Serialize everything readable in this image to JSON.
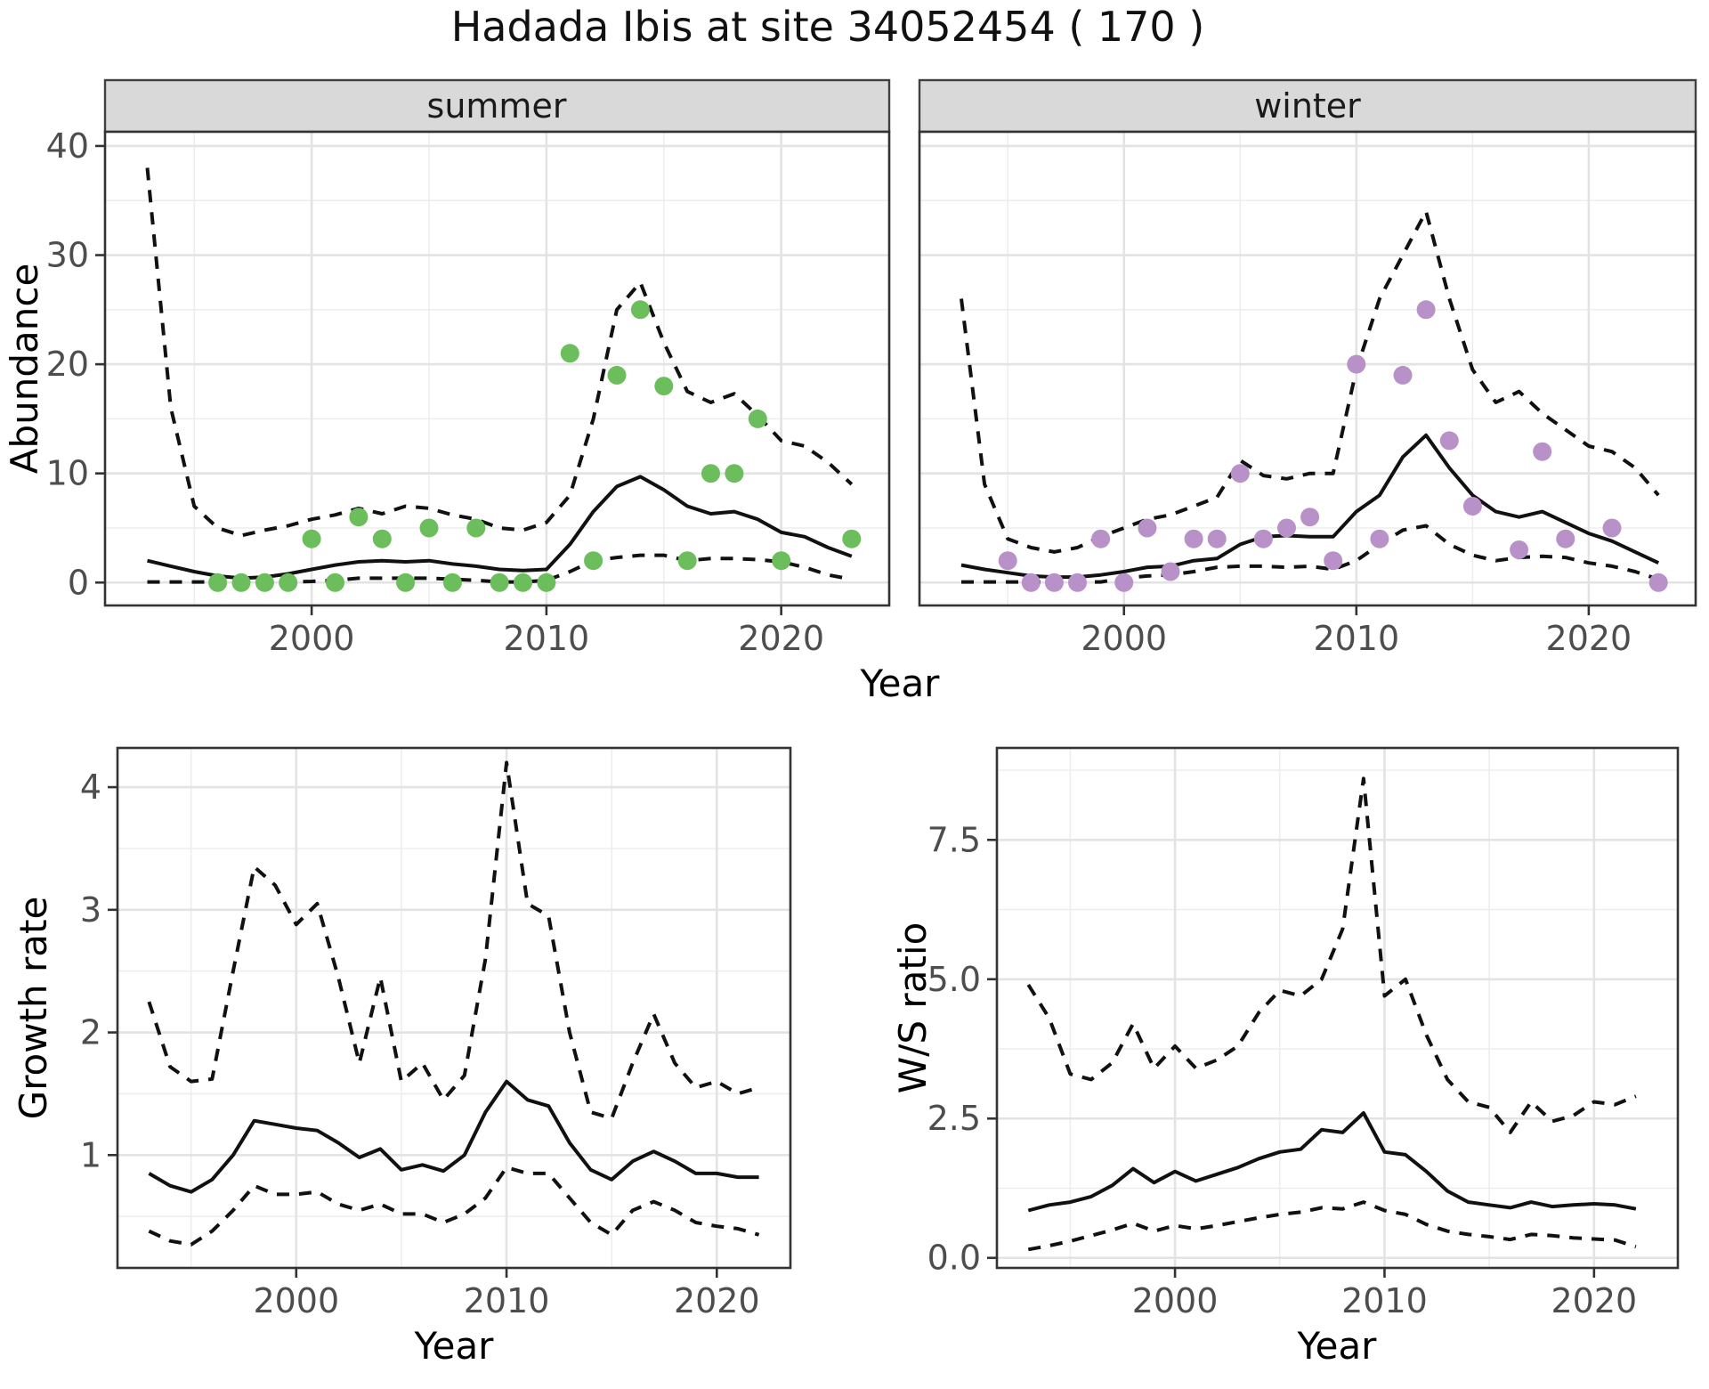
{
  "title": "Hadada Ibis at site 34052454 ( 170 )",
  "colors": {
    "summer_point": "#6BBE5B",
    "winter_point": "#B991C9",
    "line": "#111111",
    "grid_major": "#E3E3E3",
    "grid_minor": "#EDEDED",
    "strip_bg": "#D9D9D9",
    "axis_text": "#4D4D4D",
    "panel_border": "#333333"
  },
  "chart_data": [
    {
      "id": "abundance-summer",
      "type": "line",
      "facet": "summer",
      "ylabel": "Abundance",
      "xlabel": "Year",
      "xlim": [
        1991.2,
        2024.6
      ],
      "ylim": [
        -2.1,
        41.3
      ],
      "x_ticks": [
        {
          "v": 2000,
          "label": "2000"
        },
        {
          "v": 2010,
          "label": "2010"
        },
        {
          "v": 2020,
          "label": "2020"
        }
      ],
      "y_ticks": [
        {
          "v": 0,
          "label": "0"
        },
        {
          "v": 10,
          "label": "10"
        },
        {
          "v": 20,
          "label": "20"
        },
        {
          "v": 30,
          "label": "30"
        },
        {
          "v": 40,
          "label": "40"
        }
      ],
      "x_minor": [
        1995,
        2005,
        2015
      ],
      "y_minor": [
        5,
        15,
        25,
        35
      ],
      "x": [
        1993,
        1994,
        1995,
        1996,
        1997,
        1998,
        1999,
        2000,
        2001,
        2002,
        2003,
        2004,
        2005,
        2006,
        2007,
        2008,
        2009,
        2010,
        2011,
        2012,
        2013,
        2014,
        2015,
        2016,
        2017,
        2018,
        2019,
        2020,
        2021,
        2022,
        2023
      ],
      "series": [
        {
          "name": "fit",
          "style": "solid",
          "values": [
            2.0,
            1.5,
            1.0,
            0.6,
            0.4,
            0.5,
            0.8,
            1.2,
            1.6,
            1.9,
            2.0,
            1.9,
            2.0,
            1.7,
            1.5,
            1.2,
            1.1,
            1.2,
            3.5,
            6.5,
            8.8,
            9.7,
            8.5,
            7.0,
            6.3,
            6.5,
            5.8,
            4.6,
            4.2,
            3.2,
            2.4
          ]
        },
        {
          "name": "upper_ci",
          "style": "dashed",
          "values": [
            38.0,
            16.0,
            7.0,
            5.0,
            4.3,
            4.8,
            5.2,
            5.8,
            6.2,
            6.8,
            6.3,
            7.0,
            6.8,
            6.2,
            5.8,
            5.0,
            4.8,
            5.5,
            8.0,
            15.0,
            25.0,
            27.5,
            22.0,
            17.5,
            16.5,
            17.3,
            15.3,
            13.0,
            12.5,
            11.0,
            9.0
          ]
        },
        {
          "name": "lower_ci",
          "style": "dashed",
          "values": [
            0.05,
            0.05,
            0.05,
            0.05,
            0.05,
            0.05,
            0.05,
            0.1,
            0.2,
            0.4,
            0.4,
            0.4,
            0.4,
            0.3,
            0.2,
            0.05,
            0.05,
            0.2,
            1.0,
            2.0,
            2.3,
            2.5,
            2.5,
            2.0,
            2.2,
            2.2,
            2.1,
            1.9,
            1.4,
            0.7,
            0.3
          ]
        }
      ],
      "points": {
        "color": "#6BBE5B",
        "x": [
          1996,
          1997,
          1998,
          1999,
          2000,
          2001,
          2002,
          2003,
          2004,
          2005,
          2006,
          2007,
          2008,
          2009,
          2010,
          2011,
          2012,
          2013,
          2014,
          2015,
          2016,
          2017,
          2018,
          2019,
          2020,
          2023
        ],
        "y": [
          0,
          0,
          0,
          0,
          4,
          0,
          6,
          4,
          0,
          5,
          0,
          5,
          0,
          0,
          0,
          21,
          2,
          19,
          25,
          18,
          2,
          10,
          10,
          15,
          2,
          4
        ]
      }
    },
    {
      "id": "abundance-winter",
      "type": "line",
      "facet": "winter",
      "ylabel": "Abundance",
      "xlabel": "Year",
      "xlim": [
        1991.2,
        2024.6
      ],
      "ylim": [
        -2.1,
        41.3
      ],
      "x_ticks": [
        {
          "v": 2000,
          "label": "2000"
        },
        {
          "v": 2010,
          "label": "2010"
        },
        {
          "v": 2020,
          "label": "2020"
        }
      ],
      "y_ticks": [
        {
          "v": 0,
          "label": "0"
        },
        {
          "v": 10,
          "label": "10"
        },
        {
          "v": 20,
          "label": "20"
        },
        {
          "v": 30,
          "label": "30"
        },
        {
          "v": 40,
          "label": "40"
        }
      ],
      "x_minor": [
        1995,
        2005,
        2015
      ],
      "y_minor": [
        5,
        15,
        25,
        35
      ],
      "x": [
        1993,
        1994,
        1995,
        1996,
        1997,
        1998,
        1999,
        2000,
        2001,
        2002,
        2003,
        2004,
        2005,
        2006,
        2007,
        2008,
        2009,
        2010,
        2011,
        2012,
        2013,
        2014,
        2015,
        2016,
        2017,
        2018,
        2019,
        2020,
        2021,
        2022,
        2023
      ],
      "series": [
        {
          "name": "fit",
          "style": "solid",
          "values": [
            1.6,
            1.2,
            0.9,
            0.6,
            0.5,
            0.5,
            0.7,
            1.0,
            1.4,
            1.5,
            2.0,
            2.2,
            3.5,
            4.2,
            4.3,
            4.2,
            4.2,
            6.5,
            8.0,
            11.5,
            13.5,
            10.5,
            8.0,
            6.5,
            6.0,
            6.5,
            5.5,
            4.5,
            3.8,
            2.8,
            1.8
          ]
        },
        {
          "name": "upper_ci",
          "style": "dashed",
          "values": [
            26.0,
            9.0,
            4.0,
            3.2,
            2.8,
            3.2,
            4.2,
            5.0,
            5.8,
            6.2,
            7.0,
            7.8,
            11.2,
            9.8,
            9.5,
            10.0,
            10.0,
            19.5,
            26.0,
            30.0,
            34.0,
            26.0,
            19.5,
            16.5,
            17.5,
            15.5,
            14.0,
            12.5,
            12.0,
            10.5,
            8.0
          ]
        },
        {
          "name": "lower_ci",
          "style": "dashed",
          "values": [
            0.05,
            0.05,
            0.05,
            0.05,
            0.05,
            0.05,
            0.05,
            0.4,
            0.6,
            0.7,
            1.0,
            1.4,
            1.5,
            1.5,
            1.4,
            1.5,
            1.2,
            2.0,
            3.5,
            4.8,
            5.2,
            3.5,
            2.5,
            2.0,
            2.3,
            2.4,
            2.3,
            1.8,
            1.5,
            1.0,
            0.3
          ]
        }
      ],
      "points": {
        "color": "#B991C9",
        "x": [
          1995,
          1996,
          1997,
          1998,
          1999,
          2000,
          2001,
          2002,
          2003,
          2004,
          2005,
          2006,
          2007,
          2008,
          2009,
          2010,
          2011,
          2012,
          2013,
          2014,
          2015,
          2017,
          2018,
          2019,
          2021,
          2023
        ],
        "y": [
          2,
          0,
          0,
          0,
          4,
          0,
          5,
          1,
          4,
          4,
          10,
          4,
          5,
          6,
          2,
          20,
          4,
          19,
          25,
          13,
          7,
          3,
          12,
          4,
          5,
          0
        ]
      }
    },
    {
      "id": "growth-rate",
      "type": "line",
      "facet": "",
      "ylabel": "Growth rate",
      "xlabel": "Year",
      "xlim": [
        1991.5,
        2023.5
      ],
      "ylim": [
        0.08,
        4.32
      ],
      "x_ticks": [
        {
          "v": 2000,
          "label": "2000"
        },
        {
          "v": 2010,
          "label": "2010"
        },
        {
          "v": 2020,
          "label": "2020"
        }
      ],
      "y_ticks": [
        {
          "v": 1,
          "label": "1"
        },
        {
          "v": 2,
          "label": "2"
        },
        {
          "v": 3,
          "label": "3"
        },
        {
          "v": 4,
          "label": "4"
        }
      ],
      "x_minor": [
        1995,
        2005,
        2015
      ],
      "y_minor": [
        0.5,
        1.5,
        2.5,
        3.5
      ],
      "x": [
        1993,
        1994,
        1995,
        1996,
        1997,
        1998,
        1999,
        2000,
        2001,
        2002,
        2003,
        2004,
        2005,
        2006,
        2007,
        2008,
        2009,
        2010,
        2011,
        2012,
        2013,
        2014,
        2015,
        2016,
        2017,
        2018,
        2019,
        2020,
        2021,
        2022
      ],
      "series": [
        {
          "name": "fit",
          "style": "solid",
          "values": [
            0.85,
            0.75,
            0.7,
            0.8,
            1.0,
            1.28,
            1.25,
            1.22,
            1.2,
            1.1,
            0.98,
            1.05,
            0.88,
            0.92,
            0.87,
            1.0,
            1.35,
            1.6,
            1.45,
            1.4,
            1.1,
            0.88,
            0.8,
            0.95,
            1.03,
            0.95,
            0.85,
            0.85,
            0.82,
            0.82
          ]
        },
        {
          "name": "upper_ci",
          "style": "dashed",
          "values": [
            2.25,
            1.72,
            1.6,
            1.62,
            2.5,
            3.35,
            3.2,
            2.88,
            3.05,
            2.45,
            1.75,
            2.45,
            1.6,
            1.75,
            1.45,
            1.65,
            2.6,
            4.2,
            3.05,
            2.95,
            2.0,
            1.35,
            1.3,
            1.75,
            2.15,
            1.75,
            1.55,
            1.6,
            1.5,
            1.55
          ]
        },
        {
          "name": "lower_ci",
          "style": "dashed",
          "values": [
            0.38,
            0.3,
            0.27,
            0.38,
            0.55,
            0.75,
            0.68,
            0.68,
            0.7,
            0.6,
            0.55,
            0.6,
            0.52,
            0.52,
            0.45,
            0.52,
            0.65,
            0.9,
            0.85,
            0.85,
            0.65,
            0.45,
            0.35,
            0.55,
            0.62,
            0.55,
            0.45,
            0.42,
            0.4,
            0.35
          ]
        }
      ],
      "points": null
    },
    {
      "id": "ws-ratio",
      "type": "line",
      "facet": "",
      "ylabel": "W/S ratio",
      "xlabel": "Year",
      "xlim": [
        1991.5,
        2024.0
      ],
      "ylim": [
        -0.18,
        9.15
      ],
      "x_ticks": [
        {
          "v": 2000,
          "label": "2000"
        },
        {
          "v": 2010,
          "label": "2010"
        },
        {
          "v": 2020,
          "label": "2020"
        }
      ],
      "y_ticks": [
        {
          "v": 0,
          "label": "0.0"
        },
        {
          "v": 2.5,
          "label": "2.5"
        },
        {
          "v": 5,
          "label": "5.0"
        },
        {
          "v": 7.5,
          "label": "7.5"
        }
      ],
      "x_minor": [
        1995,
        2005,
        2015
      ],
      "y_minor": [
        1.25,
        3.75,
        6.25,
        8.75
      ],
      "x": [
        1993,
        1994,
        1995,
        1996,
        1997,
        1998,
        1999,
        2000,
        2001,
        2002,
        2003,
        2004,
        2005,
        2006,
        2007,
        2008,
        2009,
        2010,
        2011,
        2012,
        2013,
        2014,
        2015,
        2016,
        2017,
        2018,
        2019,
        2020,
        2021,
        2022
      ],
      "series": [
        {
          "name": "fit",
          "style": "solid",
          "values": [
            0.85,
            0.95,
            1.0,
            1.1,
            1.3,
            1.6,
            1.35,
            1.55,
            1.38,
            1.5,
            1.62,
            1.78,
            1.9,
            1.95,
            2.3,
            2.25,
            2.6,
            1.9,
            1.85,
            1.55,
            1.2,
            1.0,
            0.95,
            0.9,
            1.0,
            0.92,
            0.95,
            0.97,
            0.95,
            0.88
          ]
        },
        {
          "name": "upper_ci",
          "style": "dashed",
          "values": [
            4.9,
            4.3,
            3.3,
            3.2,
            3.5,
            4.2,
            3.4,
            3.8,
            3.4,
            3.55,
            3.8,
            4.4,
            4.8,
            4.7,
            5.0,
            5.9,
            8.6,
            4.7,
            5.0,
            4.0,
            3.2,
            2.8,
            2.7,
            2.25,
            2.8,
            2.45,
            2.55,
            2.8,
            2.75,
            2.9
          ]
        },
        {
          "name": "lower_ci",
          "style": "dashed",
          "values": [
            0.15,
            0.22,
            0.3,
            0.4,
            0.5,
            0.62,
            0.48,
            0.58,
            0.52,
            0.58,
            0.65,
            0.72,
            0.78,
            0.82,
            0.9,
            0.88,
            1.0,
            0.85,
            0.78,
            0.6,
            0.48,
            0.42,
            0.38,
            0.33,
            0.42,
            0.4,
            0.36,
            0.34,
            0.32,
            0.2
          ]
        }
      ],
      "points": null
    }
  ]
}
